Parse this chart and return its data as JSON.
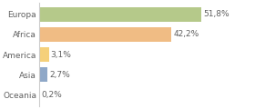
{
  "categories": [
    "Europa",
    "Africa",
    "America",
    "Asia",
    "Oceania"
  ],
  "values": [
    51.8,
    42.2,
    3.1,
    2.7,
    0.2
  ],
  "labels": [
    "51,8%",
    "42,2%",
    "3,1%",
    "2,7%",
    "0,2%"
  ],
  "bar_colors": [
    "#b5c98a",
    "#f0bc84",
    "#f5d07a",
    "#8fa8c8",
    "#c8c8c8"
  ],
  "background_color": "#ffffff",
  "xlim": [
    0,
    68
  ],
  "label_fontsize": 6.5,
  "tick_fontsize": 6.5,
  "bar_height": 0.72,
  "text_color": "#606060"
}
